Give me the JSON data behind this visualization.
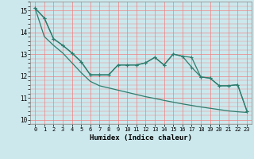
{
  "xlabel": "Humidex (Indice chaleur)",
  "bg_color": "#cce8ed",
  "grid_color_major": "#f08080",
  "grid_color_minor": "#dff0f0",
  "line_color": "#2e7d6e",
  "xlim": [
    -0.5,
    23.5
  ],
  "ylim": [
    9.8,
    15.4
  ],
  "xticks": [
    0,
    1,
    2,
    3,
    4,
    5,
    6,
    7,
    8,
    9,
    10,
    11,
    12,
    13,
    14,
    15,
    16,
    17,
    18,
    19,
    20,
    21,
    22,
    23
  ],
  "yticks": [
    10,
    11,
    12,
    13,
    14,
    15
  ],
  "line1_x": [
    0,
    1,
    2,
    3,
    4,
    5,
    6,
    7,
    8,
    9,
    10,
    11,
    12,
    13,
    14,
    15,
    16,
    17,
    18,
    19,
    20,
    21,
    22,
    23
  ],
  "line1_y": [
    15.1,
    14.65,
    13.7,
    13.4,
    13.05,
    12.65,
    12.05,
    12.05,
    12.05,
    12.5,
    12.5,
    12.5,
    12.6,
    12.85,
    12.5,
    13.0,
    12.9,
    12.85,
    11.95,
    11.9,
    11.55,
    11.55,
    11.6,
    10.4
  ],
  "line2_x": [
    0,
    1,
    2,
    3,
    4,
    5,
    6,
    7,
    8,
    9,
    10,
    11,
    12,
    13,
    14,
    15,
    16,
    17,
    18,
    19,
    20,
    21,
    22,
    23
  ],
  "line2_y": [
    15.1,
    14.65,
    13.7,
    13.4,
    13.05,
    12.65,
    12.05,
    12.05,
    12.05,
    12.5,
    12.5,
    12.5,
    12.6,
    12.85,
    12.5,
    13.0,
    12.9,
    12.4,
    11.95,
    11.9,
    11.55,
    11.55,
    11.6,
    10.4
  ],
  "line3_x": [
    0,
    1,
    2,
    3,
    4,
    5,
    6,
    7,
    8,
    9,
    10,
    11,
    12,
    13,
    14,
    15,
    16,
    17,
    18,
    19,
    20,
    21,
    22,
    23
  ],
  "line3_y": [
    15.1,
    13.8,
    13.4,
    13.05,
    12.6,
    12.15,
    11.75,
    11.55,
    11.45,
    11.35,
    11.25,
    11.15,
    11.05,
    10.97,
    10.88,
    10.8,
    10.72,
    10.65,
    10.58,
    10.52,
    10.46,
    10.4,
    10.36,
    10.33
  ]
}
